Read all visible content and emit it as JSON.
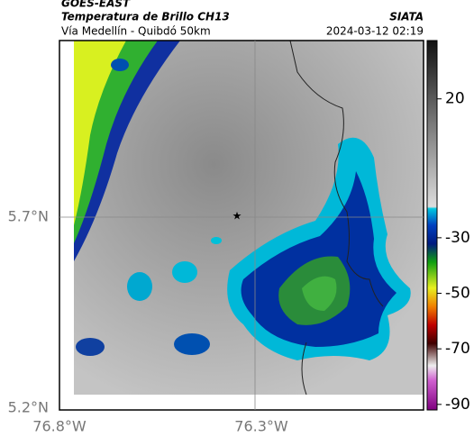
{
  "header": {
    "satellite": "GOES-EAST",
    "product": "Temperatura de Brillo CH13",
    "region": "Vía Medellín - Quibdó 50km",
    "source": "SIATA",
    "datetime": "2024-03-12 02:19"
  },
  "map": {
    "lat_labels": [
      "5.7°N",
      "5.2°N"
    ],
    "lon_labels": [
      "76.8°W",
      "76.3°W"
    ]
  },
  "colorbar": {
    "lim": [
      -92,
      41
    ],
    "ticks": [
      20,
      -30,
      -50,
      -70,
      -90
    ]
  }
}
